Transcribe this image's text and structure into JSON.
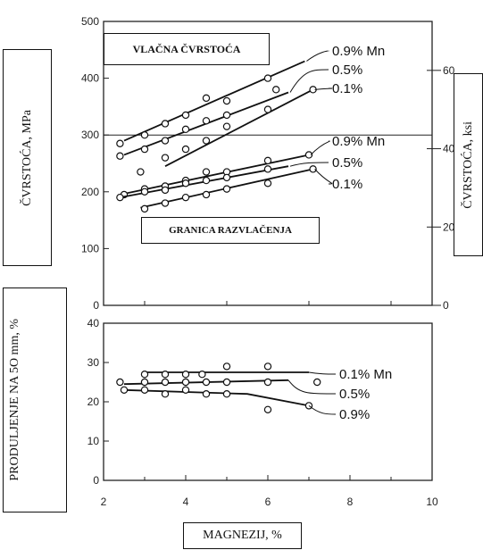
{
  "chart_data": [
    {
      "type": "scatter",
      "panel": "top",
      "xlim": [
        2,
        10
      ],
      "ylim": [
        0,
        500
      ],
      "ylim_right_ksi": [
        0,
        72.5
      ],
      "y_ticks": [
        "0",
        "100",
        "200",
        "300",
        "400",
        "500"
      ],
      "y_right_ticks": [
        "0",
        "20",
        "40",
        "60"
      ],
      "ylabel_left": "ČVRSTOĆA, MPa",
      "ylabel_right": "ČVRSTOĆA, ksi",
      "group_labels": {
        "tensile": "VLAČNA ČVRSTOĆA",
        "yield": "GRANICA RAZVLAČENJA"
      },
      "series": [
        {
          "name": "0.9% Mn",
          "group": "tensile",
          "x": [
            2.4,
            3.0,
            3.5,
            4.0,
            4.5,
            5.0,
            6.0
          ],
          "y": [
            285,
            300,
            320,
            335,
            365,
            360,
            400
          ],
          "line": [
            [
              2.5,
              290
            ],
            [
              6.9,
              430
            ]
          ]
        },
        {
          "name": "0.5%",
          "group": "tensile",
          "x": [
            2.4,
            3.0,
            3.5,
            4.0,
            4.5,
            5.0,
            6.2
          ],
          "y": [
            263,
            275,
            290,
            310,
            325,
            335,
            380
          ],
          "line": [
            [
              2.5,
              265
            ],
            [
              6.5,
              375
            ]
          ]
        },
        {
          "name": "0.1%",
          "group": "tensile",
          "x": [
            2.9,
            3.5,
            4.0,
            4.5,
            5.0,
            6.0,
            7.1
          ],
          "y": [
            235,
            260,
            275,
            290,
            315,
            345,
            380
          ],
          "line": [
            [
              3.5,
              245
            ],
            [
              7.1,
              380
            ]
          ]
        },
        {
          "name": "0.9% Mn",
          "group": "yield",
          "x": [
            2.5,
            3.0,
            3.5,
            4.0,
            4.5,
            5.0,
            6.0,
            7.0
          ],
          "y": [
            195,
            205,
            210,
            220,
            235,
            235,
            255,
            265
          ],
          "line": [
            [
              2.4,
              195
            ],
            [
              7.0,
              265
            ]
          ]
        },
        {
          "name": "0.5%",
          "group": "yield",
          "x": [
            2.4,
            3.0,
            3.5,
            4.0,
            4.5,
            5.0,
            6.0
          ],
          "y": [
            190,
            200,
            203,
            215,
            220,
            225,
            240
          ],
          "line": [
            [
              2.4,
              190
            ],
            [
              6.5,
              245
            ]
          ]
        },
        {
          "name": "0.1%",
          "group": "yield",
          "x": [
            3.0,
            3.5,
            4.0,
            4.5,
            5.0,
            6.0,
            7.1
          ],
          "y": [
            170,
            180,
            190,
            195,
            205,
            215,
            240
          ],
          "line": [
            [
              2.9,
              172
            ],
            [
              7.1,
              240
            ]
          ]
        }
      ],
      "legend": [
        "0.9% Mn",
        "0.5%",
        "0.1%",
        "0.9% Mn",
        "0.5%",
        "0.1%"
      ]
    },
    {
      "type": "scatter",
      "panel": "bottom",
      "xlim": [
        2,
        10
      ],
      "ylim": [
        0,
        40
      ],
      "x_ticks": [
        "2",
        "4",
        "6",
        "8",
        "10"
      ],
      "y_ticks": [
        "0",
        "10",
        "20",
        "30",
        "40"
      ],
      "xlabel": "MAGNEZIJ, %",
      "ylabel": "PRODULJENJE NA 5O mm, %",
      "series": [
        {
          "name": "0.1% Mn",
          "x": [
            3.0,
            3.5,
            4.0,
            4.4,
            5.0,
            6.0,
            7.2
          ],
          "y": [
            27,
            27,
            27,
            27,
            29,
            29,
            25
          ],
          "line": [
            [
              3.0,
              27.5
            ],
            [
              7.0,
              27.5
            ]
          ]
        },
        {
          "name": "0.5%",
          "x": [
            2.4,
            3.0,
            3.5,
            4.0,
            4.5,
            5.0,
            6.0
          ],
          "y": [
            25,
            25,
            25,
            25,
            25,
            25,
            25
          ],
          "line": [
            [
              2.5,
              24.5
            ],
            [
              6.5,
              25.5
            ]
          ]
        },
        {
          "name": "0.9%",
          "x": [
            2.5,
            3.0,
            3.5,
            4.0,
            4.5,
            5.0,
            6.0,
            7.0
          ],
          "y": [
            23,
            23,
            22,
            23,
            22,
            22,
            18,
            19
          ],
          "line": [
            [
              2.5,
              23
            ],
            [
              5.5,
              22
            ],
            [
              7.0,
              19
            ]
          ]
        }
      ],
      "legend": [
        "0.1% Mn",
        "0.5%",
        "0.9%"
      ]
    }
  ]
}
